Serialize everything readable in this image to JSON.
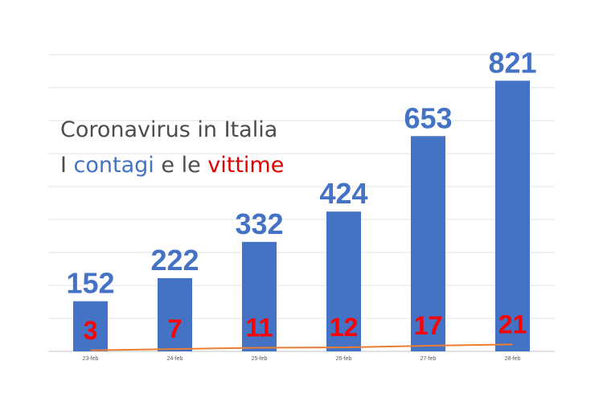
{
  "chart_data": {
    "type": "bar",
    "title_line1": "Coronavirus in Italia",
    "title_line2": {
      "part1": "I ",
      "contagi": "contagi",
      "part2": " e le ",
      "vittime": "vittime"
    },
    "categories": [
      "23-feb",
      "24-feb",
      "25-feb",
      "26-feb",
      "27-feb",
      "28-feb"
    ],
    "series": [
      {
        "name": "contagi",
        "type": "bar",
        "values": [
          152,
          222,
          332,
          424,
          653,
          821
        ],
        "color": "#4472c4"
      },
      {
        "name": "vittime",
        "type": "line",
        "values": [
          3,
          7,
          11,
          12,
          17,
          21
        ],
        "color": "#ed7d31"
      }
    ],
    "ylim": [
      0,
      900
    ],
    "grid": true,
    "label_colors": {
      "contagi": "#4472c4",
      "vittime": "#ff0000"
    }
  }
}
